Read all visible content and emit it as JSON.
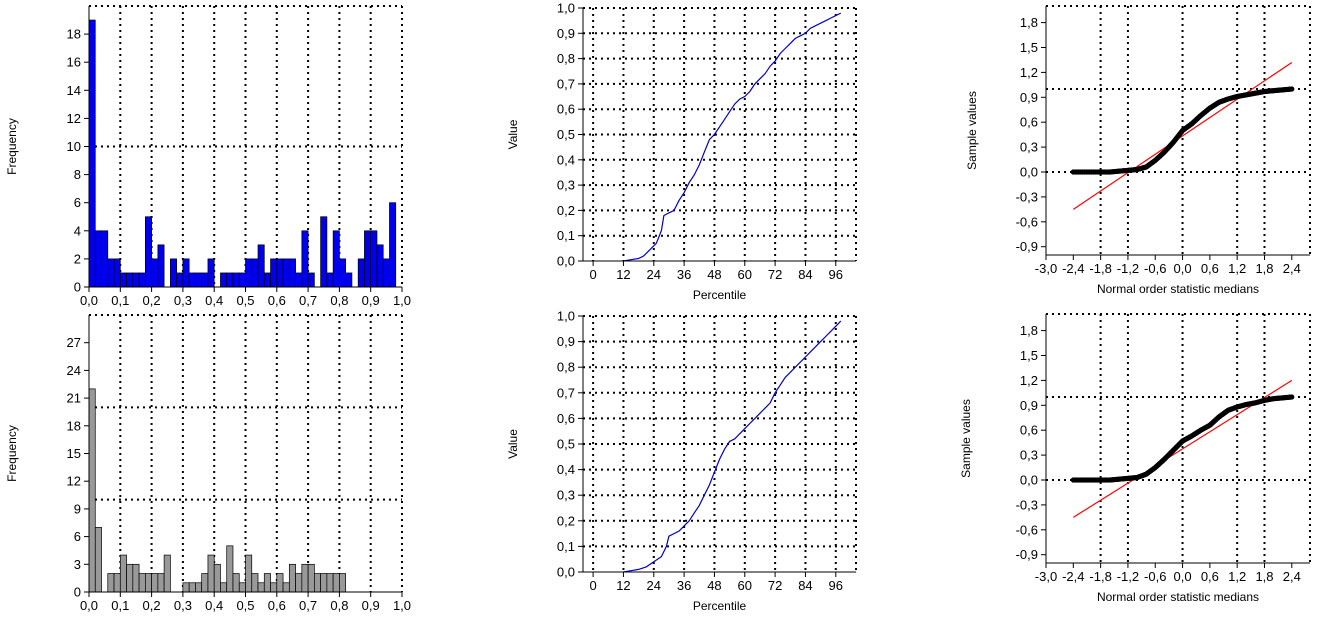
{
  "chart_data": [
    {
      "type": "bar",
      "panel": "top-left histogram",
      "ylabel": "Frequency",
      "xlabel": "",
      "xlim": [
        0.0,
        1.0
      ],
      "ylim": [
        0,
        20
      ],
      "x_ticks": [
        "0,0",
        "0,1",
        "0,2",
        "0,3",
        "0,4",
        "0,5",
        "0,6",
        "0,7",
        "0,8",
        "0,9",
        "1,0"
      ],
      "y_ticks": [
        "0",
        "2",
        "4",
        "6",
        "8",
        "10",
        "12",
        "14",
        "16",
        "18"
      ],
      "y_tick_values": [
        0,
        2,
        4,
        6,
        8,
        10,
        12,
        14,
        16,
        18
      ],
      "grid": "dotted",
      "grid_x": [
        0.1,
        0.2,
        0.3,
        0.4,
        0.5,
        0.6,
        0.7,
        0.8,
        0.9
      ],
      "grid_y": [
        10
      ],
      "bar_color": "#0000ee",
      "bin_width": 0.02,
      "values": [
        19,
        4,
        4,
        2,
        2,
        1,
        1,
        1,
        1,
        5,
        2,
        3,
        0,
        2,
        1,
        2,
        1,
        1,
        1,
        2,
        0,
        1,
        1,
        1,
        1,
        2,
        2,
        3,
        1,
        2,
        2,
        2,
        2,
        1,
        4,
        1,
        0,
        5,
        1,
        4,
        2,
        1,
        0,
        2,
        4,
        4,
        3,
        2,
        6
      ]
    },
    {
      "type": "line",
      "panel": "top-middle percentile plot",
      "ylabel": "Value",
      "xlabel": "Percentile",
      "xlim": [
        -4,
        104
      ],
      "ylim": [
        0.0,
        1.0
      ],
      "x_ticks": [
        "0",
        "12",
        "24",
        "36",
        "48",
        "60",
        "72",
        "84",
        "96"
      ],
      "x_tick_values": [
        0,
        12,
        24,
        36,
        48,
        60,
        72,
        84,
        96
      ],
      "y_ticks": [
        "0,0",
        "0,1",
        "0,2",
        "0,3",
        "0,4",
        "0,5",
        "0,6",
        "0,7",
        "0,8",
        "0,9",
        "1,0"
      ],
      "grid": "dotted",
      "line_color": "#0000cc",
      "x": [
        12,
        15,
        18,
        20,
        22,
        24,
        25,
        27,
        28,
        30,
        32,
        34,
        36,
        38,
        40,
        42,
        44,
        46,
        48,
        50,
        52,
        54,
        56,
        58,
        60,
        62,
        64,
        66,
        68,
        70,
        72,
        74,
        76,
        78,
        80,
        82,
        84,
        86,
        88,
        90,
        92,
        94,
        96,
        98
      ],
      "y": [
        0.0,
        0.005,
        0.01,
        0.02,
        0.04,
        0.06,
        0.07,
        0.12,
        0.18,
        0.19,
        0.2,
        0.24,
        0.27,
        0.31,
        0.34,
        0.38,
        0.43,
        0.48,
        0.5,
        0.53,
        0.56,
        0.59,
        0.62,
        0.64,
        0.65,
        0.67,
        0.7,
        0.72,
        0.74,
        0.77,
        0.79,
        0.82,
        0.84,
        0.86,
        0.88,
        0.89,
        0.9,
        0.92,
        0.93,
        0.94,
        0.95,
        0.96,
        0.97,
        0.98
      ]
    },
    {
      "type": "scatter",
      "panel": "top-right normal probability plot",
      "ylabel": "Sample values",
      "xlabel": "Normal order statistic medians",
      "xlim": [
        -3.0,
        2.8
      ],
      "ylim": [
        -1.0,
        2.0
      ],
      "x_ticks": [
        "-3,0",
        "-2,4",
        "-1,8",
        "-1,2",
        "-0,6",
        "0,0",
        "0,6",
        "1,2",
        "1,8",
        "2,4"
      ],
      "x_tick_values": [
        -3.0,
        -2.4,
        -1.8,
        -1.2,
        -0.6,
        0.0,
        0.6,
        1.2,
        1.8,
        2.4
      ],
      "y_ticks": [
        "-0,9",
        "-0,6",
        "-0,3",
        "0,0",
        "0,3",
        "0,6",
        "0,9",
        "1,2",
        "1,5",
        "1,8"
      ],
      "y_tick_values": [
        -0.9,
        -0.6,
        -0.3,
        0.0,
        0.3,
        0.6,
        0.9,
        1.2,
        1.5,
        1.8
      ],
      "grid": "dotted",
      "point_color": "#000000",
      "fit_line": {
        "color": "#ff0000",
        "x": [
          -2.4,
          2.4
        ],
        "y": [
          -0.45,
          1.32
        ]
      },
      "x": [
        -2.4,
        -2.0,
        -1.6,
        -1.4,
        -1.2,
        -1.0,
        -0.8,
        -0.6,
        -0.4,
        -0.2,
        0.0,
        0.2,
        0.4,
        0.6,
        0.8,
        1.0,
        1.2,
        1.4,
        1.6,
        1.8,
        2.0,
        2.2,
        2.4
      ],
      "y": [
        0.0,
        0.0,
        0.0,
        0.01,
        0.02,
        0.03,
        0.06,
        0.14,
        0.24,
        0.36,
        0.5,
        0.58,
        0.68,
        0.77,
        0.84,
        0.88,
        0.91,
        0.93,
        0.95,
        0.97,
        0.98,
        0.99,
        1.0
      ]
    },
    {
      "type": "bar",
      "panel": "bottom-left histogram",
      "ylabel": "Frequency",
      "xlabel": "",
      "xlim": [
        0.0,
        1.0
      ],
      "ylim": [
        0,
        30
      ],
      "x_ticks": [
        "0,0",
        "0,1",
        "0,2",
        "0,3",
        "0,4",
        "0,5",
        "0,6",
        "0,7",
        "0,8",
        "0,9",
        "1,0"
      ],
      "y_ticks": [
        "0",
        "3",
        "6",
        "9",
        "12",
        "15",
        "18",
        "21",
        "24",
        "27"
      ],
      "y_tick_values": [
        0,
        3,
        6,
        9,
        12,
        15,
        18,
        21,
        24,
        27
      ],
      "grid": "dotted",
      "grid_x": [
        0.1,
        0.2,
        0.3,
        0.4,
        0.5,
        0.6,
        0.7,
        0.8,
        0.9
      ],
      "grid_y": [
        10,
        20
      ],
      "bar_color": "#999999",
      "bin_width": 0.02,
      "values": [
        22,
        7,
        0,
        2,
        2,
        4,
        3,
        3,
        2,
        2,
        2,
        2,
        4,
        0,
        0,
        1,
        1,
        1,
        2,
        4,
        3,
        1,
        5,
        2,
        1,
        4,
        2,
        1,
        2,
        1,
        2,
        1,
        3,
        2,
        3,
        3,
        2,
        2,
        2,
        2,
        2
      ]
    },
    {
      "type": "line",
      "panel": "bottom-middle percentile plot",
      "ylabel": "Value",
      "xlabel": "Percentile",
      "xlim": [
        -4,
        104
      ],
      "ylim": [
        0.0,
        1.0
      ],
      "x_ticks": [
        "0",
        "12",
        "24",
        "36",
        "48",
        "60",
        "72",
        "84",
        "96"
      ],
      "x_tick_values": [
        0,
        12,
        24,
        36,
        48,
        60,
        72,
        84,
        96
      ],
      "y_ticks": [
        "0,0",
        "0,1",
        "0,2",
        "0,3",
        "0,4",
        "0,5",
        "0,6",
        "0,7",
        "0,8",
        "0,9",
        "1,0"
      ],
      "grid": "dotted",
      "line_color": "#0000cc",
      "x": [
        12,
        15,
        18,
        21,
        24,
        27,
        29,
        30,
        32,
        34,
        36,
        38,
        40,
        42,
        44,
        46,
        48,
        50,
        52,
        54,
        56,
        58,
        60,
        62,
        64,
        66,
        68,
        70,
        72,
        74,
        76,
        78,
        80,
        82,
        84,
        86,
        88,
        90,
        92,
        94,
        96,
        98
      ],
      "y": [
        0.0,
        0.005,
        0.01,
        0.02,
        0.04,
        0.06,
        0.1,
        0.14,
        0.15,
        0.16,
        0.18,
        0.2,
        0.23,
        0.26,
        0.3,
        0.34,
        0.39,
        0.44,
        0.48,
        0.51,
        0.52,
        0.54,
        0.56,
        0.58,
        0.6,
        0.62,
        0.64,
        0.66,
        0.7,
        0.73,
        0.76,
        0.78,
        0.8,
        0.82,
        0.84,
        0.86,
        0.88,
        0.9,
        0.92,
        0.94,
        0.96,
        0.98
      ]
    },
    {
      "type": "scatter",
      "panel": "bottom-right normal probability plot",
      "ylabel": "Sample values",
      "xlabel": "Normal order statistic medians",
      "xlim": [
        -3.0,
        2.8
      ],
      "ylim": [
        -1.0,
        2.0
      ],
      "x_ticks": [
        "-3,0",
        "-2,4",
        "-1,8",
        "-1,2",
        "-0,6",
        "0,0",
        "0,6",
        "1,2",
        "1,8",
        "2,4"
      ],
      "x_tick_values": [
        -3.0,
        -2.4,
        -1.8,
        -1.2,
        -0.6,
        0.0,
        0.6,
        1.2,
        1.8,
        2.4
      ],
      "y_ticks": [
        "-0,9",
        "-0,6",
        "-0,3",
        "0,0",
        "0,3",
        "0,6",
        "0,9",
        "1,2",
        "1,5",
        "1,8"
      ],
      "y_tick_values": [
        -0.9,
        -0.6,
        -0.3,
        0.0,
        0.3,
        0.6,
        0.9,
        1.2,
        1.5,
        1.8
      ],
      "grid": "dotted",
      "point_color": "#000000",
      "fit_line": {
        "color": "#ff0000",
        "x": [
          -2.4,
          2.4
        ],
        "y": [
          -0.45,
          1.2
        ]
      },
      "x": [
        -2.4,
        -2.0,
        -1.6,
        -1.4,
        -1.2,
        -1.0,
        -0.8,
        -0.6,
        -0.4,
        -0.2,
        0.0,
        0.2,
        0.4,
        0.6,
        0.8,
        1.0,
        1.2,
        1.4,
        1.6,
        1.8,
        2.0,
        2.2,
        2.4
      ],
      "y": [
        0.0,
        0.0,
        0.0,
        0.01,
        0.02,
        0.03,
        0.07,
        0.15,
        0.25,
        0.36,
        0.47,
        0.53,
        0.6,
        0.66,
        0.76,
        0.84,
        0.88,
        0.91,
        0.93,
        0.96,
        0.98,
        0.99,
        1.0
      ]
    }
  ]
}
